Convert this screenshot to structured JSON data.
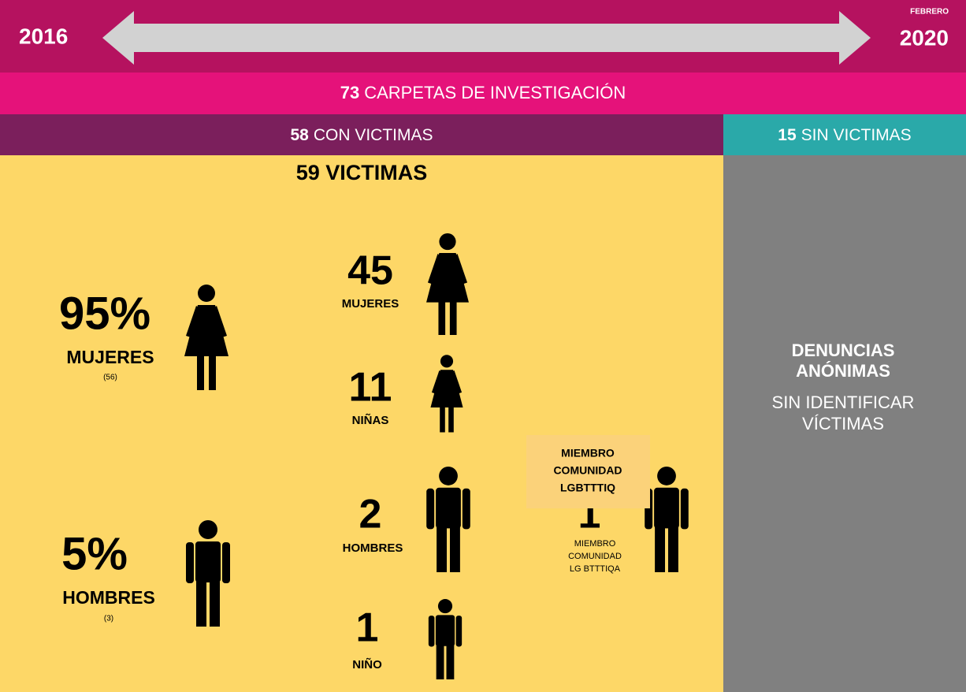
{
  "timeline": {
    "start": "2016",
    "end_note": "FEBRERO",
    "end": "2020"
  },
  "total": {
    "number": "73",
    "label": "CARPETAS DE INVESTIGACIÓN"
  },
  "with_victims": {
    "number": "58",
    "label": "CON VICTIMAS"
  },
  "without_victims": {
    "number": "15",
    "label": "SIN VICTIMAS"
  },
  "victims_title": "59 VICTIMAS",
  "summary": [
    {
      "value": "95%",
      "label": "MUJERES",
      "count": "(56)"
    },
    {
      "value": "5%",
      "label": "HOMBRES",
      "count": "(3)"
    }
  ],
  "breakdown": [
    {
      "number": "45",
      "label": "MUJERES"
    },
    {
      "number": "11",
      "label": "NIÑAS"
    },
    {
      "number": "2",
      "label": "HOMBRES"
    },
    {
      "number": "1",
      "label": "NIÑO"
    }
  ],
  "lgbt": {
    "number": "1",
    "label_lines": [
      "MIEMBRO",
      "COMUNIDAD",
      "LG BTTTIQA"
    ],
    "callout_lines": [
      "MIEMBRO",
      "COMUNIDAD",
      "LGBTTTIQ"
    ]
  },
  "anonymous": {
    "title_lines": [
      "DENUNCIAS",
      "ANÓNIMAS"
    ],
    "sub_lines": [
      "SIN IDENTIFICAR",
      "VÍCTIMAS"
    ]
  }
}
